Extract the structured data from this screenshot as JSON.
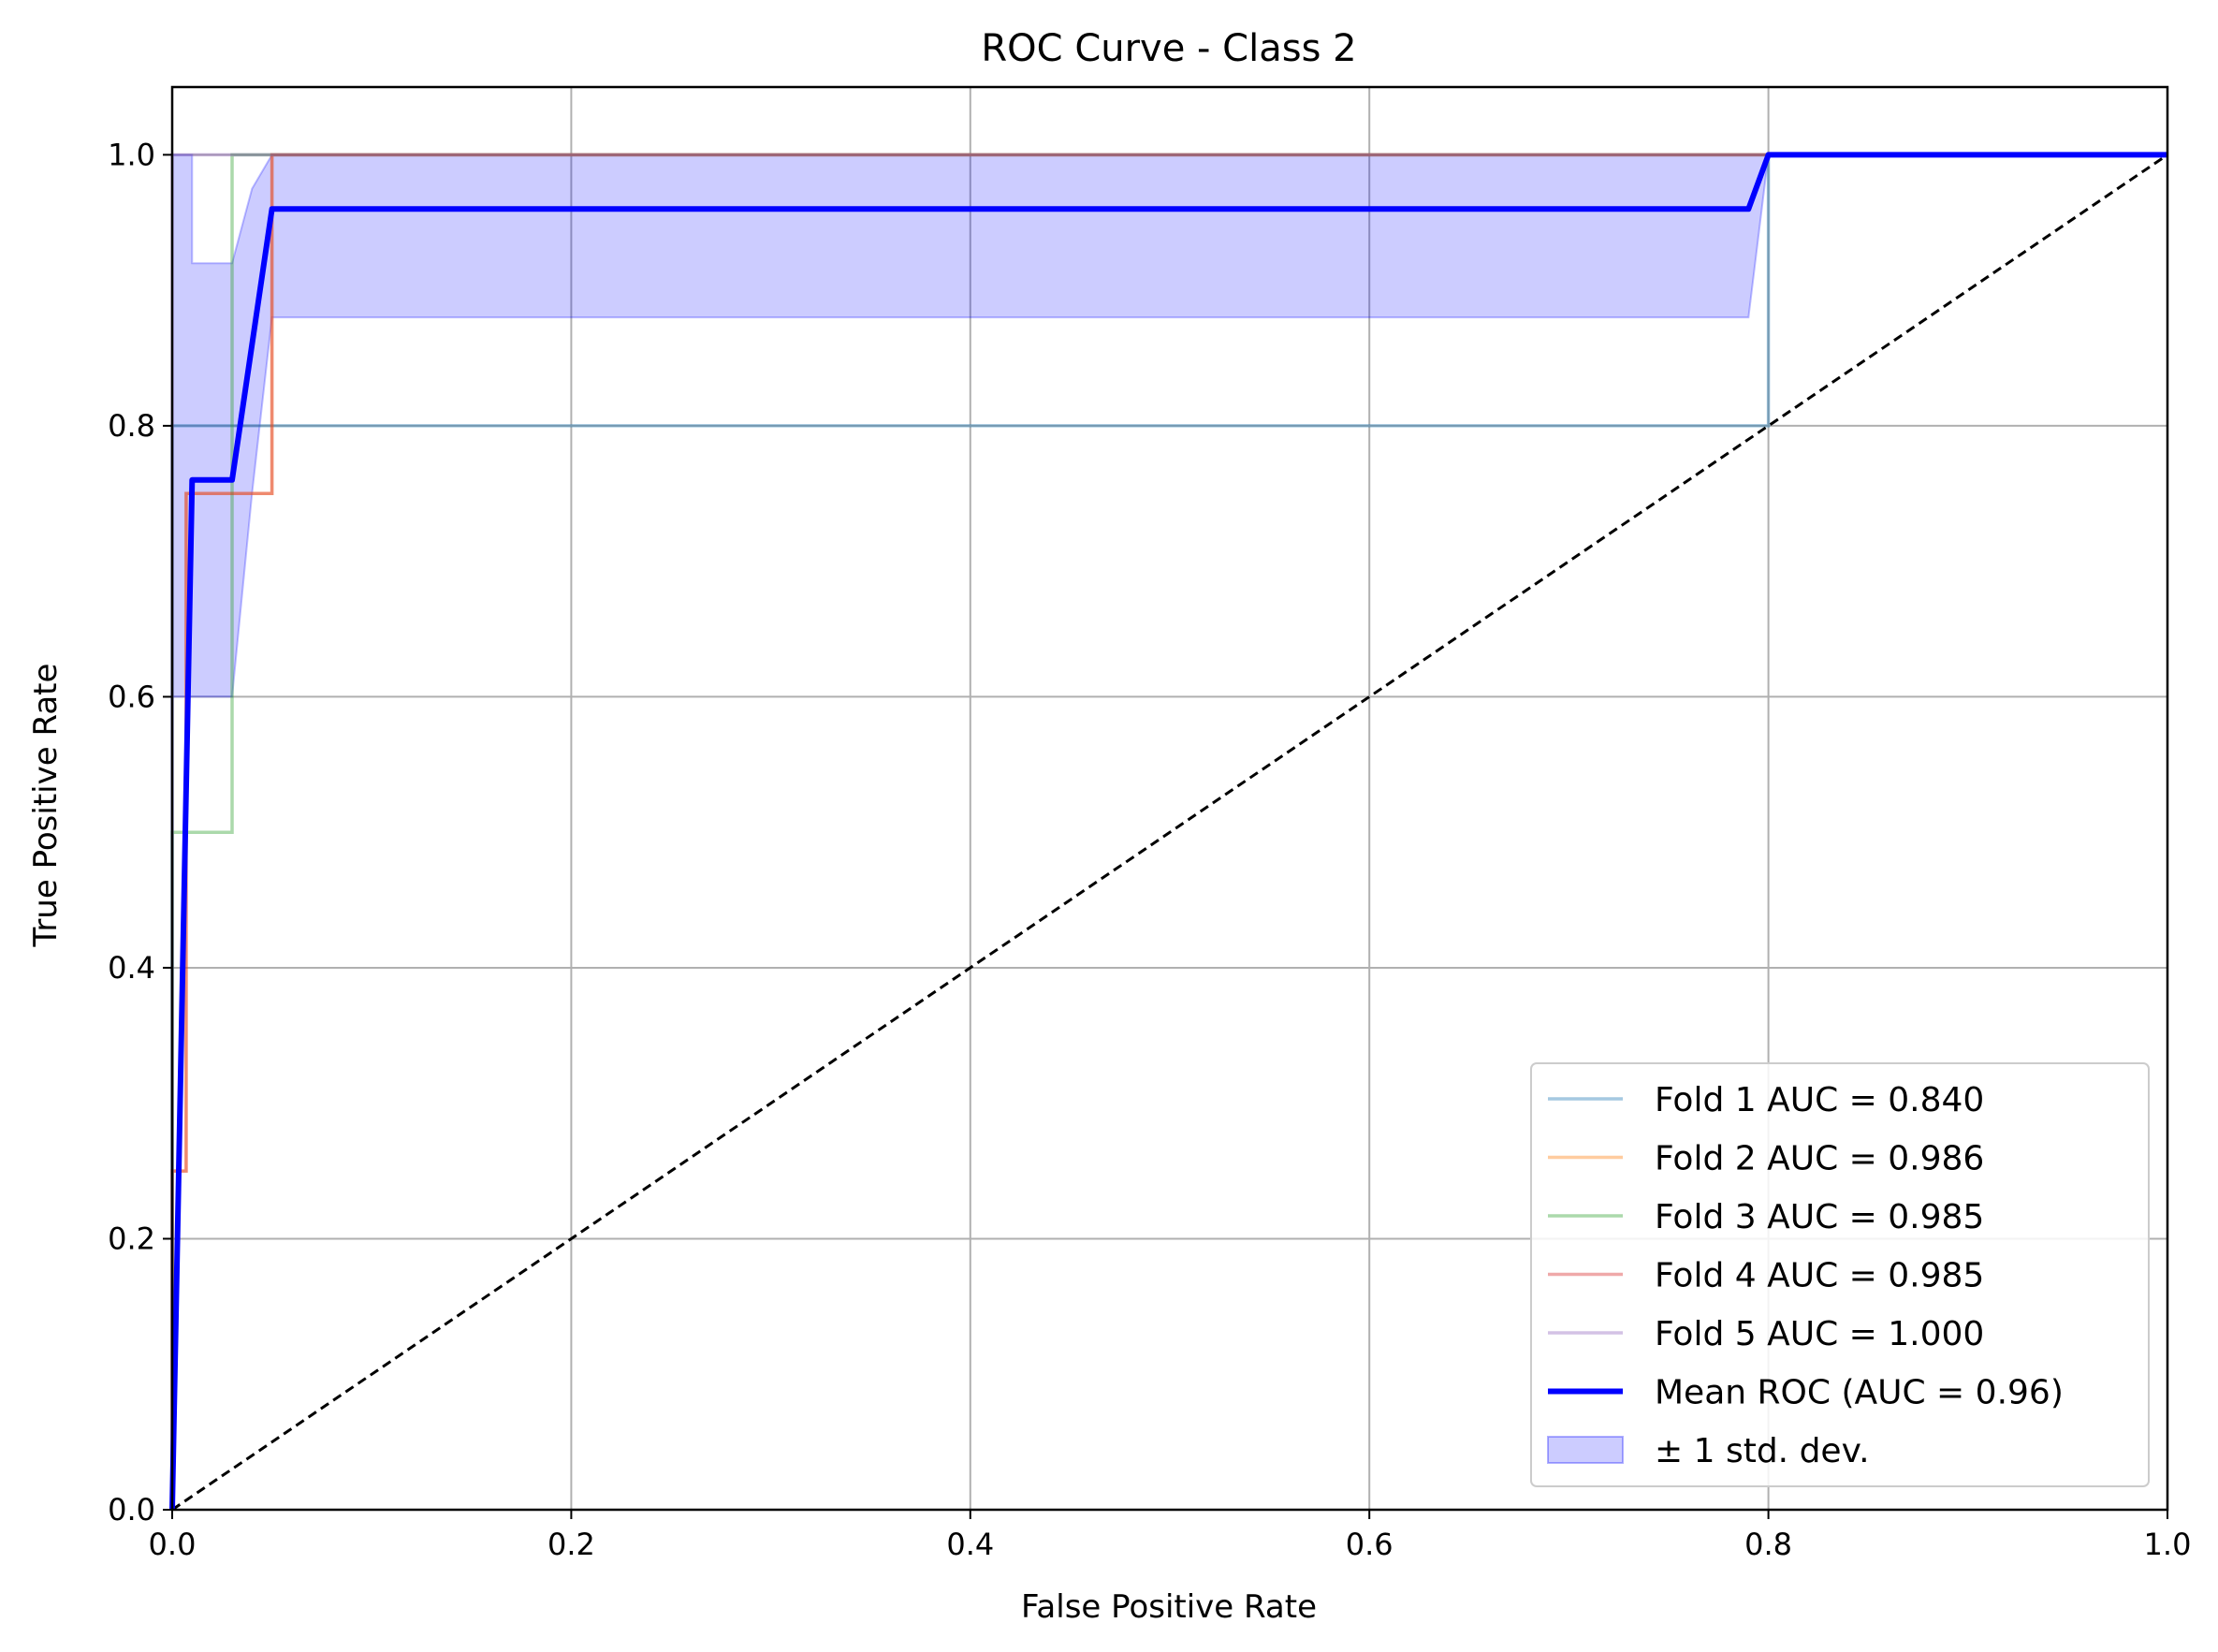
{
  "chart_data": {
    "type": "line",
    "title": "ROC Curve - Class 2",
    "xlabel": "False Positive Rate",
    "ylabel": "True Positive Rate",
    "xlim": [
      0,
      1
    ],
    "ylim": [
      0,
      1.05
    ],
    "xticks": [
      "0.0",
      "0.2",
      "0.4",
      "0.6",
      "0.8",
      "1.0"
    ],
    "yticks": [
      "0.0",
      "0.2",
      "0.4",
      "0.6",
      "0.8",
      "1.0"
    ],
    "grid": true,
    "legend_position": "lower right",
    "series": [
      {
        "name": "Fold 1 AUC = 0.840",
        "color": "#1f77b4",
        "opacity": 0.4,
        "x": [
          0,
          0,
          0.8,
          0.8,
          1.0
        ],
        "y": [
          0,
          0.8,
          0.8,
          1.0,
          1.0
        ]
      },
      {
        "name": "Fold 2 AUC = 0.986",
        "color": "#ff7f0e",
        "opacity": 0.4,
        "x": [
          0,
          0,
          0.007,
          0.007,
          0.05,
          0.05,
          1.0
        ],
        "y": [
          0,
          0.25,
          0.25,
          0.75,
          0.75,
          1.0,
          1.0
        ]
      },
      {
        "name": "Fold 3 AUC = 0.985",
        "color": "#2ca02c",
        "opacity": 0.4,
        "x": [
          0,
          0,
          0.03,
          0.03,
          1.0
        ],
        "y": [
          0,
          0.5,
          0.5,
          1.0,
          1.0
        ]
      },
      {
        "name": "Fold 4 AUC = 0.985",
        "color": "#d62728",
        "opacity": 0.4,
        "x": [
          0,
          0,
          0.007,
          0.007,
          0.05,
          0.05,
          1.0
        ],
        "y": [
          0,
          0.25,
          0.25,
          0.75,
          0.75,
          1.0,
          1.0
        ]
      },
      {
        "name": "Fold 5 AUC = 1.000",
        "color": "#9467bd",
        "opacity": 0.4,
        "x": [
          0,
          0,
          1.0
        ],
        "y": [
          0,
          1.0,
          1.0
        ]
      }
    ],
    "mean": {
      "name": "Mean ROC (AUC = 0.96)",
      "color": "#0000ff",
      "x": [
        0,
        0.01,
        0.03,
        0.05,
        0.79,
        0.8,
        1.0
      ],
      "y": [
        0,
        0.76,
        0.76,
        0.96,
        0.96,
        1.0,
        1.0
      ]
    },
    "std_band": {
      "name": "± 1 std. dev.",
      "color": "#0000ff",
      "opacity": 0.2,
      "x": [
        0,
        0.01,
        0.03,
        0.04,
        0.05,
        0.79,
        0.8,
        1.0
      ],
      "upper": [
        1.0,
        1.0,
        1.0,
        1.0,
        1.0,
        1.0,
        1.0,
        1.0
      ],
      "lower": [
        0.6,
        0.6,
        0.6,
        0.75,
        0.88,
        0.88,
        1.0,
        1.0
      ],
      "upper_left_x": [
        0.01,
        0.03,
        0.04,
        0.05
      ],
      "upper_left_y": [
        0.92,
        0.92,
        0.975,
        1.0
      ]
    },
    "diagonal": {
      "color": "#000000",
      "style": "dashed",
      "x": [
        0,
        1
      ],
      "y": [
        0,
        1
      ]
    }
  }
}
